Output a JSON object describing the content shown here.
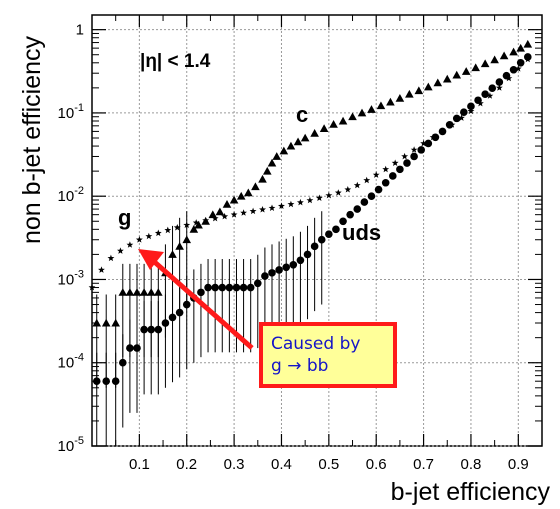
{
  "chart_data": {
    "type": "scatter",
    "title": "",
    "xlabel": "b-jet efficiency",
    "ylabel": "non b-jet efficiency",
    "xlim": [
      0.0,
      0.95
    ],
    "ylim": [
      1e-05,
      1.5
    ],
    "log_y": true,
    "grid": true,
    "x_ticks": [
      "0.1",
      "0.2",
      "0.3",
      "0.4",
      "0.5",
      "0.6",
      "0.7",
      "0.8",
      "0.9"
    ],
    "y_ticks": [
      {
        "base": "10",
        "exp": "-5"
      },
      {
        "base": "10",
        "exp": "-4"
      },
      {
        "base": "10",
        "exp": "-3"
      },
      {
        "base": "10",
        "exp": "-2"
      },
      {
        "base": "10",
        "exp": "-1"
      },
      {
        "base": "1",
        "exp": ""
      }
    ],
    "annotations": {
      "region": "|η| < 1.4",
      "c_label": "c",
      "g_label": "g",
      "uds_label": "uds",
      "box_line1": "Caused by",
      "box_line2": "g → bb"
    },
    "series": [
      {
        "name": "c",
        "marker": "triangle",
        "points": [
          [
            0.01,
            0.0003
          ],
          [
            0.03,
            0.0003
          ],
          [
            0.05,
            0.0003
          ],
          [
            0.065,
            0.0007
          ],
          [
            0.08,
            0.0007
          ],
          [
            0.095,
            0.0007
          ],
          [
            0.11,
            0.0007
          ],
          [
            0.125,
            0.0007
          ],
          [
            0.14,
            0.0007
          ],
          [
            0.155,
            0.0012
          ],
          [
            0.17,
            0.002
          ],
          [
            0.185,
            0.0025
          ],
          [
            0.2,
            0.003
          ],
          [
            0.215,
            0.004
          ],
          [
            0.225,
            0.0045
          ],
          [
            0.24,
            0.005
          ],
          [
            0.255,
            0.006
          ],
          [
            0.27,
            0.0065
          ],
          [
            0.285,
            0.008
          ],
          [
            0.3,
            0.009
          ],
          [
            0.315,
            0.01
          ],
          [
            0.33,
            0.011
          ],
          [
            0.345,
            0.013
          ],
          [
            0.36,
            0.016
          ],
          [
            0.37,
            0.02
          ],
          [
            0.38,
            0.025
          ],
          [
            0.39,
            0.03
          ],
          [
            0.405,
            0.035
          ],
          [
            0.42,
            0.04
          ],
          [
            0.435,
            0.045
          ],
          [
            0.45,
            0.05
          ],
          [
            0.47,
            0.057
          ],
          [
            0.49,
            0.065
          ],
          [
            0.51,
            0.073
          ],
          [
            0.53,
            0.08
          ],
          [
            0.55,
            0.09
          ],
          [
            0.57,
            0.1
          ],
          [
            0.59,
            0.11
          ],
          [
            0.61,
            0.122
          ],
          [
            0.63,
            0.135
          ],
          [
            0.65,
            0.15
          ],
          [
            0.67,
            0.168
          ],
          [
            0.69,
            0.185
          ],
          [
            0.71,
            0.205
          ],
          [
            0.73,
            0.23
          ],
          [
            0.75,
            0.255
          ],
          [
            0.77,
            0.285
          ],
          [
            0.79,
            0.315
          ],
          [
            0.81,
            0.35
          ],
          [
            0.83,
            0.39
          ],
          [
            0.85,
            0.435
          ],
          [
            0.87,
            0.485
          ],
          [
            0.89,
            0.54
          ],
          [
            0.905,
            0.6
          ],
          [
            0.92,
            0.67
          ]
        ]
      },
      {
        "name": "g",
        "marker": "star",
        "points": [
          [
            0.0,
            0.0008
          ],
          [
            0.02,
            0.0013
          ],
          [
            0.04,
            0.0018
          ],
          [
            0.06,
            0.0022
          ],
          [
            0.08,
            0.0026
          ],
          [
            0.1,
            0.003
          ],
          [
            0.12,
            0.0033
          ],
          [
            0.14,
            0.0036
          ],
          [
            0.16,
            0.0039
          ],
          [
            0.18,
            0.0042
          ],
          [
            0.2,
            0.0045
          ],
          [
            0.22,
            0.0048
          ],
          [
            0.24,
            0.0051
          ],
          [
            0.26,
            0.0054
          ],
          [
            0.28,
            0.0057
          ],
          [
            0.3,
            0.006
          ],
          [
            0.32,
            0.0063
          ],
          [
            0.34,
            0.0066
          ],
          [
            0.36,
            0.0069
          ],
          [
            0.38,
            0.0072
          ],
          [
            0.4,
            0.0076
          ],
          [
            0.42,
            0.008
          ],
          [
            0.44,
            0.0084
          ],
          [
            0.46,
            0.0089
          ],
          [
            0.48,
            0.0095
          ],
          [
            0.5,
            0.0102
          ],
          [
            0.52,
            0.011
          ],
          [
            0.54,
            0.012
          ],
          [
            0.56,
            0.0135
          ],
          [
            0.58,
            0.0155
          ],
          [
            0.6,
            0.018
          ],
          [
            0.62,
            0.021
          ],
          [
            0.64,
            0.025
          ],
          [
            0.66,
            0.03
          ],
          [
            0.68,
            0.036
          ],
          [
            0.7,
            0.043
          ],
          [
            0.72,
            0.051
          ],
          [
            0.74,
            0.06
          ],
          [
            0.76,
            0.072
          ],
          [
            0.78,
            0.087
          ],
          [
            0.8,
            0.105
          ],
          [
            0.82,
            0.13
          ],
          [
            0.84,
            0.16
          ],
          [
            0.86,
            0.2
          ],
          [
            0.88,
            0.26
          ],
          [
            0.9,
            0.34
          ],
          [
            0.92,
            0.44
          ]
        ]
      },
      {
        "name": "uds",
        "marker": "circle",
        "points": [
          [
            0.01,
            6e-05
          ],
          [
            0.03,
            6e-05
          ],
          [
            0.05,
            6e-05
          ],
          [
            0.065,
            0.0001
          ],
          [
            0.08,
            0.00015
          ],
          [
            0.095,
            0.00015
          ],
          [
            0.11,
            0.00025
          ],
          [
            0.125,
            0.00025
          ],
          [
            0.14,
            0.00025
          ],
          [
            0.155,
            0.0003
          ],
          [
            0.17,
            0.00035
          ],
          [
            0.185,
            0.0004
          ],
          [
            0.2,
            0.0005
          ],
          [
            0.215,
            0.0006
          ],
          [
            0.23,
            0.0007
          ],
          [
            0.245,
            0.0008
          ],
          [
            0.26,
            0.0008
          ],
          [
            0.275,
            0.0008
          ],
          [
            0.29,
            0.0008
          ],
          [
            0.305,
            0.0008
          ],
          [
            0.32,
            0.0008
          ],
          [
            0.335,
            0.0008
          ],
          [
            0.35,
            0.0009
          ],
          [
            0.365,
            0.0011
          ],
          [
            0.38,
            0.0012
          ],
          [
            0.395,
            0.0013
          ],
          [
            0.41,
            0.0014
          ],
          [
            0.425,
            0.0015
          ],
          [
            0.44,
            0.0017
          ],
          [
            0.455,
            0.002
          ],
          [
            0.47,
            0.0025
          ],
          [
            0.485,
            0.003
          ],
          [
            0.5,
            0.0035
          ],
          [
            0.515,
            0.004
          ],
          [
            0.53,
            0.005
          ],
          [
            0.545,
            0.006
          ],
          [
            0.56,
            0.007
          ],
          [
            0.575,
            0.0085
          ],
          [
            0.59,
            0.01
          ],
          [
            0.605,
            0.012
          ],
          [
            0.62,
            0.0145
          ],
          [
            0.635,
            0.0175
          ],
          [
            0.65,
            0.021
          ],
          [
            0.665,
            0.025
          ],
          [
            0.68,
            0.03
          ],
          [
            0.695,
            0.036
          ],
          [
            0.71,
            0.043
          ],
          [
            0.725,
            0.051
          ],
          [
            0.74,
            0.06
          ],
          [
            0.755,
            0.072
          ],
          [
            0.77,
            0.086
          ],
          [
            0.785,
            0.102
          ],
          [
            0.8,
            0.12
          ],
          [
            0.815,
            0.142
          ],
          [
            0.83,
            0.168
          ],
          [
            0.845,
            0.198
          ],
          [
            0.86,
            0.235
          ],
          [
            0.875,
            0.28
          ],
          [
            0.89,
            0.33
          ],
          [
            0.905,
            0.4
          ],
          [
            0.92,
            0.47
          ]
        ]
      }
    ]
  }
}
